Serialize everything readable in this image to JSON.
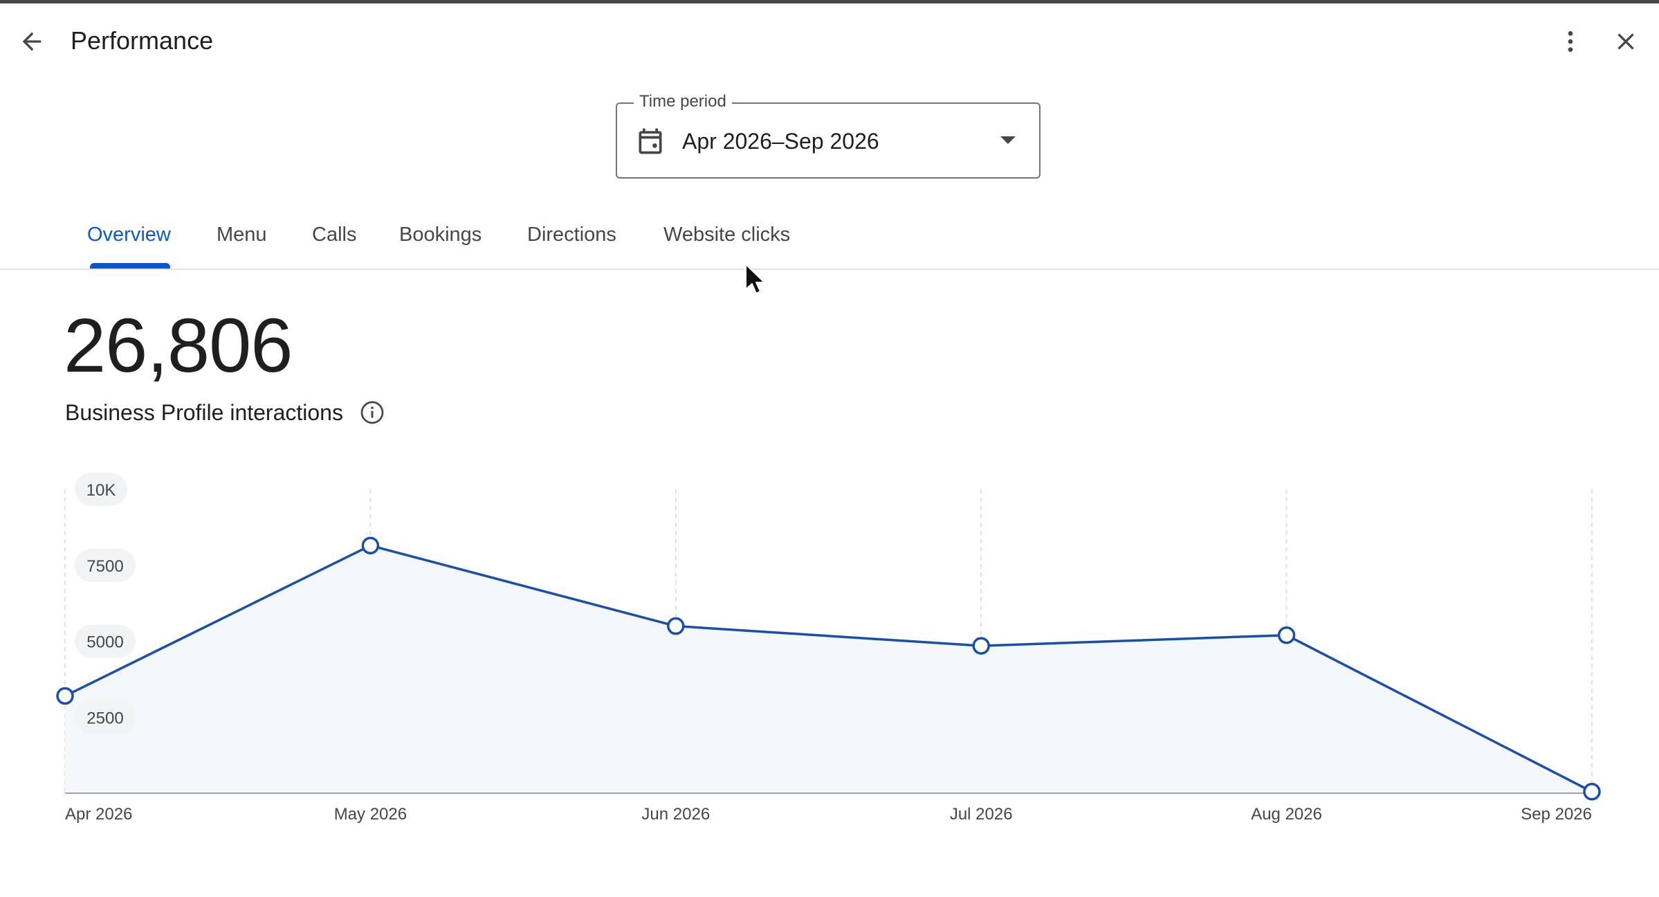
{
  "header": {
    "title": "Performance",
    "back_icon": "arrow-back-icon",
    "more_icon": "more-vert-icon",
    "close_icon": "close-icon"
  },
  "time_period": {
    "label": "Time period",
    "value": "Apr 2026–Sep 2026",
    "icon": "calendar-icon"
  },
  "tabs": [
    {
      "label": "Overview",
      "active": true
    },
    {
      "label": "Menu",
      "active": false
    },
    {
      "label": "Calls",
      "active": false
    },
    {
      "label": "Bookings",
      "active": false
    },
    {
      "label": "Directions",
      "active": false
    },
    {
      "label": "Website clicks",
      "active": false
    }
  ],
  "summary": {
    "total": "26,806",
    "label": "Business Profile interactions"
  },
  "colors": {
    "accent": "#0b57d0",
    "line": "#1a4fa8",
    "area_fill": "#f4f7fc"
  },
  "chart_data": {
    "type": "area",
    "x": [
      "Apr 2026",
      "May 2026",
      "Jun 2026",
      "Jul 2026",
      "Aug 2026",
      "Sep 2026"
    ],
    "series": [
      {
        "values": [
          3200,
          8150,
          5500,
          4850,
          5200,
          50
        ]
      }
    ],
    "yticks": [
      "10K",
      "7500",
      "5000",
      "2500"
    ],
    "ytick_values": [
      10000,
      7500,
      5000,
      2500
    ],
    "ylim": [
      0,
      10000
    ],
    "grid": "vertical-dashed",
    "legend": "none"
  }
}
